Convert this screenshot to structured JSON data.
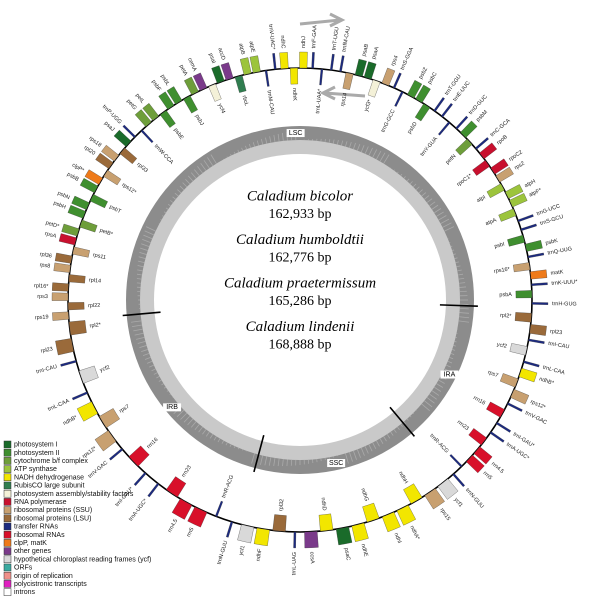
{
  "genomes": [
    {
      "name": "Caladium bicolor",
      "size": "162,933 bp"
    },
    {
      "name": "Caladium humboldtii",
      "size": "162,776 bp"
    },
    {
      "name": "Caladium praetermissum",
      "size": "165,286 bp"
    },
    {
      "name": "Caladium lindenii",
      "size": "168,888 bp"
    }
  ],
  "regions": [
    {
      "label": "LSC",
      "genes": [
        "trnH-GUG",
        "psbA",
        "trnK-UUU*",
        "matK",
        "rps16*",
        "trnQ-UUG",
        "psbK",
        "psbI",
        "trnS-GCU",
        "trnG-UCC",
        "atpA",
        "atpF*",
        "atpH",
        "atpI",
        "rps2",
        "rpoC2",
        "rpoC1*",
        "rpoB",
        "trnC-GCA",
        "petN",
        "psbM",
        "trnD-GUC",
        "trnY-GUA",
        "trnE-UUC",
        "trnT-GGU",
        "psbD",
        "psbC",
        "psbZ",
        "trnG-GCC",
        "trnS-GGA",
        "rps4",
        "ycf3*",
        "psaA",
        "psaB",
        "rps14",
        "trnfM-CAU",
        "trnT-UGU",
        "trnL-UAA*",
        "trnF-GAA",
        "ndhJ",
        "ndhK",
        "ndhC",
        "trnV-UAC*",
        "trnM-CAU",
        "atpE",
        "atpB",
        "rbcL",
        "accD",
        "psaI",
        "ycf4",
        "cemA",
        "petA",
        "psbJ",
        "psbL",
        "psbF",
        "psbE",
        "petL",
        "petG",
        "trnW-CCA",
        "trnP-UGG",
        "psaJ",
        "rpl33",
        "rps18",
        "rpl20",
        "rps12*",
        "clpP*",
        "psbB",
        "psbT",
        "psbN",
        "psbH",
        "petB*",
        "petD*",
        "rpoA",
        "rps11",
        "rpl36",
        "rps8",
        "rpl14",
        "rpl16*",
        "rps3",
        "rpl22",
        "rps19"
      ]
    },
    {
      "label": "IRB",
      "genes": [
        "rpl2*",
        "rpl23",
        "trnI-CAU",
        "ycf2",
        "trnL-CAA",
        "ndhB*",
        "rps7",
        "rps12*",
        "trnV-GAC",
        "rrn16",
        "trnI-GAU*",
        "trnA-UGC*",
        "rrn23",
        "rrn4.5",
        "rrn5",
        "trnR-ACG",
        "trnN-GUU"
      ]
    },
    {
      "label": "SSC",
      "genes": [
        "ycf1",
        "ndhF",
        "rpl32",
        "trnL-UAG",
        "ccsA",
        "ndhD",
        "psaC",
        "ndhE",
        "ndhG",
        "ndhI",
        "ndhA*",
        "ndhH",
        "rps15",
        "ycf1"
      ]
    },
    {
      "label": "IRA",
      "genes": [
        "trnN-GUU",
        "trnR-ACG",
        "rrn5",
        "rrn4.5",
        "rrn23",
        "trnA-UGC*",
        "trnI-GAU*",
        "rrn16",
        "trnV-GAC",
        "rps12*",
        "rps7",
        "ndhB*",
        "trnL-CAA",
        "ycf2",
        "trnI-CAU",
        "rpl23",
        "rpl2*"
      ]
    }
  ],
  "legend": [
    {
      "label": "photosystem I",
      "color": "#1a6b2a"
    },
    {
      "label": "photosystem II",
      "color": "#3f8f2f"
    },
    {
      "label": "cytochrome b/f complex",
      "color": "#6e9e3a"
    },
    {
      "label": "ATP synthase",
      "color": "#9cc43c"
    },
    {
      "label": "NADH dehydrogenase",
      "color": "#f2e600"
    },
    {
      "label": "RubisCO large subunit",
      "color": "#2f7d4f"
    },
    {
      "label": "photosystem assembly/stability factors",
      "color": "#f4f1d8"
    },
    {
      "label": "RNA polymerase",
      "color": "#c8102e"
    },
    {
      "label": "ribosomal proteins (SSU)",
      "color": "#c8a070"
    },
    {
      "label": "ribosomal proteins (LSU)",
      "color": "#9a6a3a"
    },
    {
      "label": "transfer RNAs",
      "color": "#1c2a80"
    },
    {
      "label": "ribosomal RNAs",
      "color": "#d8102a"
    },
    {
      "label": "clpP, matK",
      "color": "#ee7a1a"
    },
    {
      "label": "other genes",
      "color": "#7a3a8a"
    },
    {
      "label": "hypothetical chloroplast reading frames (ycf)",
      "color": "#d9d9d9"
    },
    {
      "label": "ORFs",
      "color": "#3aaaa0"
    },
    {
      "label": "origin of replication",
      "color": "#f0908a"
    },
    {
      "label": "polycistronic transcripts",
      "color": "#e020c0"
    },
    {
      "label": "introns",
      "color": "#ffffff"
    }
  ]
}
